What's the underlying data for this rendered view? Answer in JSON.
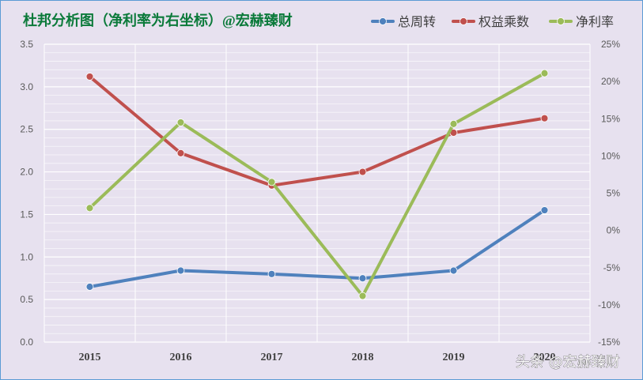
{
  "colors": {
    "background": "#e7e1ef",
    "border": "#5b9bd5",
    "title": "#0b7a3a",
    "grid": "#ffffff"
  },
  "watermark": {
    "text": "头条 @宏赫臻财"
  },
  "chart_data": {
    "type": "line",
    "title": "杜邦分析图（净利率为右坐标）@宏赫臻财",
    "categories": [
      "2015",
      "2016",
      "2017",
      "2018",
      "2019",
      "2020"
    ],
    "ylim": [
      0,
      3.5
    ],
    "y_ticks": [
      "0.0",
      "0.5",
      "1.0",
      "1.5",
      "2.0",
      "2.5",
      "3.0",
      "3.5"
    ],
    "y2lim": [
      -0.15,
      0.25
    ],
    "y2_ticks": [
      "-15%",
      "-10%",
      "-5%",
      "0%",
      "5%",
      "10%",
      "15%",
      "20%",
      "25%"
    ],
    "grid": true,
    "legend_position": "top-right",
    "series": [
      {
        "name": "总周转",
        "axis": "left",
        "color": "#4f81bd",
        "values": [
          0.65,
          0.84,
          0.8,
          0.75,
          0.84,
          1.55
        ]
      },
      {
        "name": "权益乘数",
        "axis": "left",
        "color": "#c0504d",
        "values": [
          3.12,
          2.22,
          1.84,
          2.0,
          2.46,
          2.63
        ]
      },
      {
        "name": "净利率",
        "axis": "right",
        "color": "#9bbb59",
        "values": [
          0.03,
          0.145,
          0.065,
          -0.088,
          0.143,
          0.211
        ]
      }
    ]
  }
}
